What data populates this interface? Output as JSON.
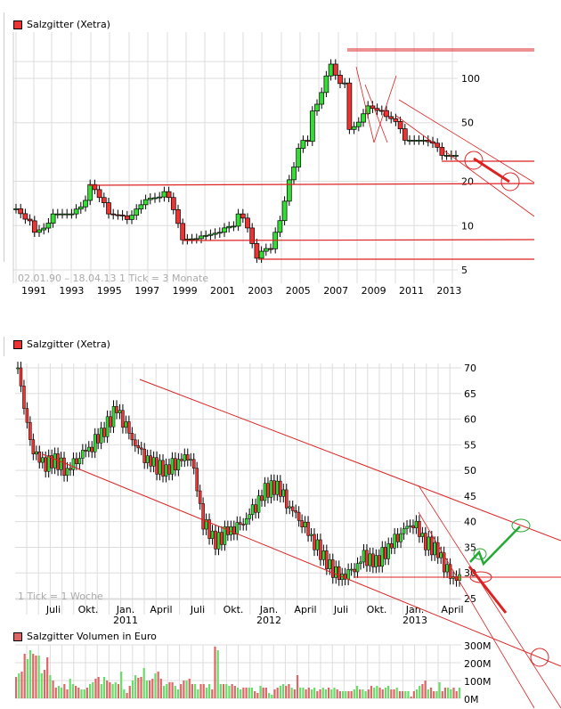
{
  "colors": {
    "grid": "#dddddd",
    "up": "#33dd33",
    "down": "#ee3333",
    "trend": "#dd2222",
    "green_arrow": "#22aa33",
    "vol_up": "#66dd66",
    "vol_down": "#dd6666",
    "info": "#aaaaaa"
  },
  "top_chart": {
    "title": "Salzgitter (Xetra)",
    "info_text": "02.01.90 – 18.04.13   1 Tick = 3 Monate",
    "x_labels": [
      "1991",
      "1993",
      "1995",
      "1997",
      "1999",
      "2001",
      "2003",
      "2005",
      "2007",
      "2009",
      "2011",
      "2013"
    ],
    "y_labels": [
      "100",
      "50",
      "20",
      "10",
      "5"
    ]
  },
  "bottom_chart": {
    "title": "Salzgitter (Xetra)",
    "info_text": "1 Tick = 1 Woche",
    "x_labels": [
      {
        "m": "Juli",
        "y": ""
      },
      {
        "m": "Okt.",
        "y": ""
      },
      {
        "m": "Jan.",
        "y": "2011"
      },
      {
        "m": "April",
        "y": ""
      },
      {
        "m": "Juli",
        "y": ""
      },
      {
        "m": "Okt.",
        "y": ""
      },
      {
        "m": "Jan.",
        "y": "2012"
      },
      {
        "m": "April",
        "y": ""
      },
      {
        "m": "Juli",
        "y": ""
      },
      {
        "m": "Okt.",
        "y": ""
      },
      {
        "m": "Jan.",
        "y": "2013"
      },
      {
        "m": "April",
        "y": ""
      }
    ],
    "y_labels": [
      "70",
      "65",
      "60",
      "55",
      "50",
      "45",
      "40",
      "35",
      "30",
      "25"
    ]
  },
  "volume_chart": {
    "title": "Salzgitter Volumen in Euro",
    "y_labels": [
      "300M",
      "200M",
      "100M",
      "0M"
    ]
  },
  "chart_data": [
    {
      "type": "candlestick",
      "title": "Salzgitter (Xetra)",
      "subtitle": "02.01.90 – 18.04.13, 1 Tick = 3 Monate",
      "scale": "log",
      "xlabel": "",
      "ylabel": "",
      "x_ticks": [
        "1991",
        "1993",
        "1995",
        "1997",
        "1999",
        "2001",
        "2003",
        "2005",
        "2007",
        "2009",
        "2011",
        "2013"
      ],
      "y_ticks": [
        100,
        50,
        20,
        10,
        5
      ],
      "ylim": [
        4.5,
        140
      ],
      "approx_closes": [
        {
          "x": "1990",
          "close": 13
        },
        {
          "x": "1991",
          "close": 9
        },
        {
          "x": "1992",
          "close": 12
        },
        {
          "x": "1993",
          "close": 12
        },
        {
          "x": "1994",
          "close": 19
        },
        {
          "x": "1995",
          "close": 12
        },
        {
          "x": "1996",
          "close": 11
        },
        {
          "x": "1997",
          "close": 15
        },
        {
          "x": "1998",
          "close": 17
        },
        {
          "x": "1999",
          "close": 8
        },
        {
          "x": "2000",
          "close": 8.5
        },
        {
          "x": "2001",
          "close": 9
        },
        {
          "x": "2002",
          "close": 12
        },
        {
          "x": "2003",
          "close": 6
        },
        {
          "x": "2004",
          "close": 9
        },
        {
          "x": "2005",
          "close": 25
        },
        {
          "x": "2006",
          "close": 60
        },
        {
          "x": "2007",
          "close": 125
        },
        {
          "x": "2008",
          "close": 45
        },
        {
          "x": "2009",
          "close": 65
        },
        {
          "x": "2010",
          "close": 55
        },
        {
          "x": "2011",
          "close": 38
        },
        {
          "x": "2012",
          "close": 38
        },
        {
          "x": "2013",
          "close": 30
        }
      ],
      "annotations": [
        {
          "type": "hline",
          "value": 130,
          "from": "2007.5"
        },
        {
          "type": "hline",
          "value": 20,
          "from": "1993.5"
        },
        {
          "type": "hline",
          "value": 8,
          "from": "1999"
        },
        {
          "type": "hline",
          "value": 6,
          "from": "2003"
        },
        {
          "type": "hline",
          "value": 27,
          "from": "2012.2"
        },
        {
          "type": "channel",
          "desc": "descending channel from 2010 high toward 2014"
        },
        {
          "type": "arrow",
          "desc": "red arrow projecting decline toward ~20"
        }
      ]
    },
    {
      "type": "candlestick",
      "title": "Salzgitter (Xetra)",
      "subtitle": "1 Tick = 1 Woche",
      "x_ticks": [
        "Juli",
        "Okt.",
        "Jan. 2011",
        "April",
        "Juli",
        "Okt.",
        "Jan. 2012",
        "April",
        "Juli",
        "Okt.",
        "Jan. 2013",
        "April"
      ],
      "y_ticks": [
        70,
        65,
        60,
        55,
        50,
        45,
        40,
        35,
        30,
        25
      ],
      "ylim": [
        24,
        72
      ],
      "approx_closes": [
        {
          "x": "2010-05",
          "close": 70
        },
        {
          "x": "2010-06",
          "close": 55
        },
        {
          "x": "2010-07",
          "close": 51
        },
        {
          "x": "2010-08",
          "close": 52
        },
        {
          "x": "2010-09",
          "close": 50
        },
        {
          "x": "2010-10",
          "close": 53
        },
        {
          "x": "2010-11",
          "close": 55
        },
        {
          "x": "2010-12",
          "close": 58
        },
        {
          "x": "2011-01",
          "close": 62
        },
        {
          "x": "2011-02",
          "close": 57
        },
        {
          "x": "2011-03",
          "close": 53
        },
        {
          "x": "2011-04",
          "close": 51
        },
        {
          "x": "2011-05",
          "close": 50
        },
        {
          "x": "2011-06",
          "close": 52
        },
        {
          "x": "2011-07",
          "close": 53
        },
        {
          "x": "2011-08",
          "close": 40
        },
        {
          "x": "2011-09",
          "close": 36
        },
        {
          "x": "2011-10",
          "close": 38
        },
        {
          "x": "2011-11",
          "close": 39
        },
        {
          "x": "2011-12",
          "close": 42
        },
        {
          "x": "2012-01",
          "close": 46
        },
        {
          "x": "2012-02",
          "close": 47
        },
        {
          "x": "2012-03",
          "close": 43
        },
        {
          "x": "2012-04",
          "close": 40
        },
        {
          "x": "2012-05",
          "close": 36
        },
        {
          "x": "2012-06",
          "close": 32
        },
        {
          "x": "2012-07",
          "close": 29
        },
        {
          "x": "2012-08",
          "close": 30
        },
        {
          "x": "2012-09",
          "close": 33
        },
        {
          "x": "2012-10",
          "close": 32
        },
        {
          "x": "2012-11",
          "close": 35
        },
        {
          "x": "2012-12",
          "close": 38
        },
        {
          "x": "2013-01",
          "close": 40
        },
        {
          "x": "2013-02",
          "close": 36
        },
        {
          "x": "2013-03",
          "close": 34
        },
        {
          "x": "2013-04",
          "close": 29
        }
      ],
      "annotations": [
        {
          "type": "channel_upper",
          "from": [
            "2011-01",
            66
          ],
          "to": [
            "2013-08",
            33
          ]
        },
        {
          "type": "channel_lower",
          "from": [
            "2010-07",
            48
          ],
          "to": [
            "2013-08",
            18
          ]
        },
        {
          "type": "hline",
          "value": 27.5,
          "from": "2012-07"
        },
        {
          "type": "green_scenario",
          "desc": "bounce from ~29 to ~35"
        },
        {
          "type": "red_scenario",
          "desc": "decline from ~29 to ~22"
        }
      ]
    },
    {
      "type": "bar",
      "title": "Salzgitter Volumen in Euro",
      "y_ticks": [
        "300M",
        "200M",
        "100M",
        "0M"
      ],
      "ylim": [
        0,
        300
      ],
      "unit": "M EUR",
      "approx_values_M": [
        120,
        140,
        150,
        250,
        220,
        270,
        250,
        240,
        240,
        140,
        160,
        230,
        130,
        100,
        60,
        70,
        60,
        80,
        50,
        110,
        80,
        70,
        60,
        50,
        50,
        60,
        80,
        90,
        110,
        120,
        80,
        120,
        100,
        90,
        80,
        90,
        80,
        150,
        50,
        30,
        70,
        100,
        130,
        115,
        120,
        170,
        100,
        100,
        110,
        140,
        150,
        110,
        70,
        80,
        90,
        90,
        70,
        50,
        80,
        100,
        100,
        110,
        80,
        80,
        50,
        80,
        80,
        60,
        80,
        50,
        290,
        270,
        80,
        80,
        80,
        70,
        80,
        70,
        60,
        50,
        60,
        60,
        60,
        60,
        40,
        30,
        70,
        60,
        60,
        30,
        20,
        50,
        60,
        70,
        80,
        70,
        80,
        60,
        50,
        130,
        60,
        60,
        50,
        60,
        50,
        60,
        40,
        50,
        60,
        50,
        60,
        50,
        60,
        50,
        40,
        40,
        40,
        40,
        40,
        50,
        70,
        50,
        50,
        40,
        50,
        70,
        60,
        70,
        60,
        50,
        60,
        70,
        50,
        50,
        60,
        40,
        40,
        40,
        40,
        10,
        40,
        50,
        70,
        80,
        100,
        50,
        60,
        40,
        40,
        90,
        40,
        60,
        60,
        50,
        60,
        40,
        60
      ]
    }
  ]
}
